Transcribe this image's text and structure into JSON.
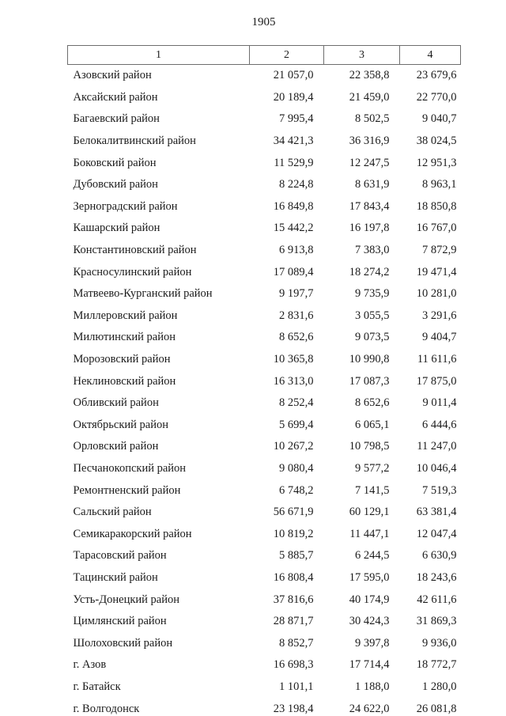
{
  "page": {
    "page_number": "1905"
  },
  "table": {
    "headers": [
      "1",
      "2",
      "3",
      "4"
    ],
    "rows": [
      {
        "name": "Азовский район",
        "values": [
          "21 057,0",
          "22 358,8",
          "23 679,6"
        ]
      },
      {
        "name": "Аксайский район",
        "values": [
          "20 189,4",
          "21 459,0",
          "22 770,0"
        ]
      },
      {
        "name": "Багаевский район",
        "values": [
          "7 995,4",
          "8 502,5",
          "9 040,7"
        ]
      },
      {
        "name": "Белокалитвинский район",
        "values": [
          "34 421,3",
          "36 316,9",
          "38 024,5"
        ]
      },
      {
        "name": "Боковский район",
        "values": [
          "11 529,9",
          "12 247,5",
          "12 951,3"
        ]
      },
      {
        "name": "Дубовский район",
        "values": [
          "8 224,8",
          "8 631,9",
          "8 963,1"
        ]
      },
      {
        "name": "Зерноградский район",
        "values": [
          "16 849,8",
          "17 843,4",
          "18 850,8"
        ]
      },
      {
        "name": "Кашарский район",
        "values": [
          "15 442,2",
          "16 197,8",
          "16 767,0"
        ]
      },
      {
        "name": "Константиновский район",
        "values": [
          "6 913,8",
          "7 383,0",
          "7 872,9"
        ]
      },
      {
        "name": "Красносулинский район",
        "values": [
          "17 089,4",
          "18 274,2",
          "19 471,4"
        ]
      },
      {
        "name": "Матвеево-Курганский район",
        "values": [
          "9 197,7",
          "9 735,9",
          "10 281,0"
        ]
      },
      {
        "name": "Миллеровский район",
        "values": [
          "2 831,6",
          "3 055,5",
          "3 291,6"
        ]
      },
      {
        "name": "Милютинский район",
        "values": [
          "8 652,6",
          "9 073,5",
          "9 404,7"
        ]
      },
      {
        "name": "Морозовский район",
        "values": [
          "10 365,8",
          "10 990,8",
          "11 611,6"
        ]
      },
      {
        "name": "Неклиновский район",
        "values": [
          "16 313,0",
          "17 087,3",
          "17 875,0"
        ]
      },
      {
        "name": "Обливский район",
        "values": [
          "8 252,4",
          "8 652,6",
          "9 011,4"
        ]
      },
      {
        "name": "Октябрьский район",
        "values": [
          "5 699,4",
          "6 065,1",
          "6 444,6"
        ]
      },
      {
        "name": "Орловский район",
        "values": [
          "10 267,2",
          "10 798,5",
          "11 247,0"
        ]
      },
      {
        "name": "Песчанокопский район",
        "values": [
          "9 080,4",
          "9 577,2",
          "10 046,4"
        ]
      },
      {
        "name": "Ремонтненский район",
        "values": [
          "6 748,2",
          "7 141,5",
          "7 519,3"
        ]
      },
      {
        "name": "Сальский район",
        "values": [
          "56 671,9",
          "60 129,1",
          "63 381,4"
        ]
      },
      {
        "name": "Семикаракорский район",
        "values": [
          "10 819,2",
          "11 447,1",
          "12 047,4"
        ]
      },
      {
        "name": "Тарасовский район",
        "values": [
          "5 885,7",
          "6 244,5",
          "6 630,9"
        ]
      },
      {
        "name": "Тацинский район",
        "values": [
          "16 808,4",
          "17 595,0",
          "18 243,6"
        ]
      },
      {
        "name": "Усть-Донецкий район",
        "values": [
          "37 816,6",
          "40 174,9",
          "42 611,6"
        ]
      },
      {
        "name": "Цимлянский район",
        "values": [
          "28 871,7",
          "30 424,3",
          "31 869,3"
        ]
      },
      {
        "name": "Шолоховский район",
        "values": [
          "8 852,7",
          "9 397,8",
          "9 936,0"
        ]
      },
      {
        "name": "г. Азов",
        "values": [
          "16 698,3",
          "17 714,4",
          "18 772,7"
        ]
      },
      {
        "name": "г. Батайск",
        "values": [
          "1 101,1",
          "1 188,0",
          "1 280,0"
        ]
      },
      {
        "name": "г. Волгодонск",
        "values": [
          "23 198,4",
          "24 622,0",
          "26 081,8"
        ]
      }
    ]
  }
}
